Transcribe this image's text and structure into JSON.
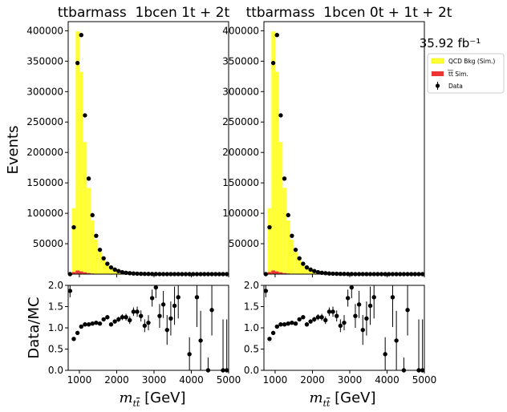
{
  "figure": {
    "ylabel_top": "Events",
    "ylabel_ratio": "Data/MC",
    "lumi_label": "35.92 fb⁻¹"
  },
  "legend": {
    "qcd": "QCD Bkg (Sim.)",
    "ttbar": "t̅t̅ Sim.",
    "data": "Data",
    "colors": {
      "qcd": "#ffff33",
      "qcd_edge": "#e6e600",
      "ttbar": "#ee3333",
      "data": "#000000"
    }
  },
  "chart_data": [
    {
      "type": "bar",
      "title": "ttbarmass  1bcen 1t + 2t",
      "xlabel": "m_tt [GeV]",
      "ylabel": "Events",
      "xlim": [
        700,
        5000
      ],
      "ylim": [
        0,
        415000
      ],
      "ratio_ylim": [
        0,
        2
      ],
      "x_ticks": [
        "1000",
        "2000",
        "3000",
        "4000",
        "5000"
      ],
      "y_ticks": [
        "50000",
        "100000",
        "150000",
        "200000",
        "250000",
        "300000",
        "350000",
        "400000"
      ],
      "ratio_ticks": [
        "0.0",
        "0.5",
        "1.0",
        "1.5",
        "2.0"
      ],
      "bin_edges": [
        700,
        800,
        900,
        1000,
        1100,
        1200,
        1300,
        1400,
        1500,
        1600,
        1700,
        1800,
        1900,
        2000,
        2100,
        2200,
        2300,
        2400,
        2500,
        2600,
        2700,
        2800,
        2900,
        3000,
        3100,
        3200,
        3300,
        3400,
        3500,
        3600,
        3700,
        3800,
        3900,
        4000,
        4100,
        4200,
        4300,
        4400,
        4500,
        4600,
        4700,
        4800,
        4900,
        5000
      ],
      "series": [
        {
          "name": "QCD Bkg (Sim.)",
          "kind": "stack",
          "values": [
            0,
            105000,
            393000,
            328000,
            214000,
            140000,
            87000,
            56000,
            36000,
            24000,
            15000,
            10000,
            6500,
            4500,
            3000,
            2000,
            1400,
            1000,
            700,
            500,
            350,
            250,
            180,
            120,
            80,
            60,
            40,
            30,
            20,
            15,
            10,
            8,
            5,
            4,
            3,
            2,
            2,
            1,
            1,
            1,
            0,
            0,
            0
          ]
        },
        {
          "name": "tt Sim.",
          "kind": "stack",
          "values": [
            0,
            3500,
            6000,
            4500,
            3000,
            1800,
            1000,
            600,
            350,
            200,
            120,
            80,
            50,
            30,
            20,
            10,
            6,
            4,
            3,
            2,
            1,
            1,
            1,
            0,
            0,
            0,
            0,
            0,
            0,
            0,
            0,
            0,
            0,
            0,
            0,
            0,
            0,
            0,
            0,
            0,
            0,
            0,
            0
          ]
        },
        {
          "name": "Data",
          "kind": "points",
          "x": [
            750,
            850,
            950,
            1050,
            1150,
            1250,
            1350,
            1450,
            1550,
            1650,
            1750,
            1850,
            1950,
            2050,
            2150,
            2250,
            2350,
            2450,
            2550,
            2650,
            2750,
            2850,
            2950,
            3050,
            3150,
            3250,
            3350,
            3450,
            3550,
            3650,
            3750,
            3850,
            3950,
            4050,
            4150,
            4250,
            4350,
            4450,
            4550,
            4650,
            4750,
            4850,
            4950
          ],
          "y": [
            0,
            77000,
            347000,
            393000,
            261000,
            157000,
            97000,
            63000,
            40000,
            26000,
            17000,
            11000,
            7500,
            5000,
            3200,
            2200,
            1600,
            1100,
            800,
            600,
            450,
            320,
            240,
            170,
            120,
            90,
            65,
            45,
            30,
            22,
            15,
            10,
            7,
            5,
            4,
            3,
            2,
            2,
            1,
            1,
            1,
            0,
            0
          ]
        }
      ],
      "ratio": {
        "x": [
          750,
          850,
          950,
          1050,
          1150,
          1250,
          1350,
          1450,
          1550,
          1650,
          1750,
          1850,
          1950,
          2050,
          2150,
          2250,
          2350,
          2450,
          2550,
          2650,
          2750,
          2850,
          2950,
          3050,
          3150,
          3250,
          3350,
          3450,
          3550,
          3650,
          3750,
          3850,
          3950,
          4050,
          4150,
          4250,
          4350,
          4450,
          4550,
          4650,
          4750,
          4850,
          4950
        ],
        "y": [
          1.87,
          0.74,
          0.88,
          1.03,
          1.08,
          1.08,
          1.1,
          1.12,
          1.1,
          1.2,
          1.25,
          1.08,
          1.15,
          1.2,
          1.25,
          1.25,
          1.18,
          1.38,
          1.38,
          1.28,
          1.05,
          1.12,
          1.7,
          1.95,
          1.28,
          1.55,
          0.95,
          1.22,
          1.52,
          1.72,
          null,
          null,
          0.38,
          null,
          1.72,
          0.7,
          null,
          0.0,
          1.42,
          null,
          null,
          0.0,
          0.0
        ],
        "err": [
          0.15,
          0.03,
          0.02,
          0.02,
          0.02,
          0.02,
          0.02,
          0.03,
          0.03,
          0.03,
          0.04,
          0.05,
          0.05,
          0.06,
          0.07,
          0.08,
          0.09,
          0.1,
          0.12,
          0.13,
          0.15,
          0.18,
          0.2,
          0.25,
          0.28,
          0.32,
          0.35,
          0.4,
          0.45,
          0.5,
          0,
          0,
          0.4,
          0,
          0.7,
          0.7,
          0,
          0.3,
          0.6,
          0,
          0,
          1.2,
          1.2
        ]
      }
    },
    {
      "type": "bar",
      "title": "ttbarmass  1bcen 0t + 1t + 2t",
      "xlabel": "m_tt [GeV]",
      "ylabel": "Events",
      "xlim": [
        700,
        5000
      ],
      "ylim": [
        0,
        415000
      ],
      "ratio_ylim": [
        0,
        2
      ],
      "x_ticks": [
        "1000",
        "2000",
        "3000",
        "4000",
        "5000"
      ],
      "y_ticks": [
        "50000",
        "100000",
        "150000",
        "200000",
        "250000",
        "300000",
        "350000",
        "400000"
      ],
      "ratio_ticks": [
        "0.0",
        "0.5",
        "1.0",
        "1.5",
        "2.0"
      ],
      "bin_edges": [
        700,
        800,
        900,
        1000,
        1100,
        1200,
        1300,
        1400,
        1500,
        1600,
        1700,
        1800,
        1900,
        2000,
        2100,
        2200,
        2300,
        2400,
        2500,
        2600,
        2700,
        2800,
        2900,
        3000,
        3100,
        3200,
        3300,
        3400,
        3500,
        3600,
        3700,
        3800,
        3900,
        4000,
        4100,
        4200,
        4300,
        4400,
        4500,
        4600,
        4700,
        4800,
        4900,
        5000
      ],
      "series": [
        {
          "name": "QCD Bkg (Sim.)",
          "kind": "stack",
          "values": [
            0,
            105000,
            393000,
            328000,
            214000,
            140000,
            87000,
            56000,
            36000,
            24000,
            15000,
            10000,
            6500,
            4500,
            3000,
            2000,
            1400,
            1000,
            700,
            500,
            350,
            250,
            180,
            120,
            80,
            60,
            40,
            30,
            20,
            15,
            10,
            8,
            5,
            4,
            3,
            2,
            2,
            1,
            1,
            1,
            0,
            0,
            0
          ]
        },
        {
          "name": "tt Sim.",
          "kind": "stack",
          "values": [
            0,
            3500,
            6000,
            4500,
            3000,
            1800,
            1000,
            600,
            350,
            200,
            120,
            80,
            50,
            30,
            20,
            10,
            6,
            4,
            3,
            2,
            1,
            1,
            1,
            0,
            0,
            0,
            0,
            0,
            0,
            0,
            0,
            0,
            0,
            0,
            0,
            0,
            0,
            0,
            0,
            0,
            0,
            0,
            0
          ]
        },
        {
          "name": "Data",
          "kind": "points",
          "x": [
            750,
            850,
            950,
            1050,
            1150,
            1250,
            1350,
            1450,
            1550,
            1650,
            1750,
            1850,
            1950,
            2050,
            2150,
            2250,
            2350,
            2450,
            2550,
            2650,
            2750,
            2850,
            2950,
            3050,
            3150,
            3250,
            3350,
            3450,
            3550,
            3650,
            3750,
            3850,
            3950,
            4050,
            4150,
            4250,
            4350,
            4450,
            4550,
            4650,
            4750,
            4850,
            4950
          ],
          "y": [
            0,
            77000,
            347000,
            393000,
            261000,
            157000,
            97000,
            63000,
            40000,
            26000,
            17000,
            11000,
            7500,
            5000,
            3200,
            2200,
            1600,
            1100,
            800,
            600,
            450,
            320,
            240,
            170,
            120,
            90,
            65,
            45,
            30,
            22,
            15,
            10,
            7,
            5,
            4,
            3,
            2,
            2,
            1,
            1,
            1,
            0,
            0
          ]
        }
      ],
      "ratio": {
        "x": [
          750,
          850,
          950,
          1050,
          1150,
          1250,
          1350,
          1450,
          1550,
          1650,
          1750,
          1850,
          1950,
          2050,
          2150,
          2250,
          2350,
          2450,
          2550,
          2650,
          2750,
          2850,
          2950,
          3050,
          3150,
          3250,
          3350,
          3450,
          3550,
          3650,
          3750,
          3850,
          3950,
          4050,
          4150,
          4250,
          4350,
          4450,
          4550,
          4650,
          4750,
          4850,
          4950
        ],
        "y": [
          1.87,
          0.74,
          0.88,
          1.03,
          1.08,
          1.08,
          1.1,
          1.12,
          1.1,
          1.2,
          1.25,
          1.08,
          1.15,
          1.2,
          1.25,
          1.25,
          1.18,
          1.38,
          1.38,
          1.28,
          1.05,
          1.12,
          1.7,
          1.95,
          1.28,
          1.55,
          0.95,
          1.22,
          1.52,
          1.72,
          null,
          null,
          0.38,
          null,
          1.72,
          0.7,
          null,
          0.0,
          1.42,
          null,
          null,
          0.0,
          0.0
        ],
        "err": [
          0.15,
          0.03,
          0.02,
          0.02,
          0.02,
          0.02,
          0.02,
          0.03,
          0.03,
          0.03,
          0.04,
          0.05,
          0.05,
          0.06,
          0.07,
          0.08,
          0.09,
          0.1,
          0.12,
          0.13,
          0.15,
          0.18,
          0.2,
          0.25,
          0.28,
          0.32,
          0.35,
          0.4,
          0.45,
          0.5,
          0,
          0,
          0.4,
          0,
          0.7,
          0.7,
          0,
          0.3,
          0.6,
          0,
          0,
          1.2,
          1.2
        ]
      }
    }
  ]
}
